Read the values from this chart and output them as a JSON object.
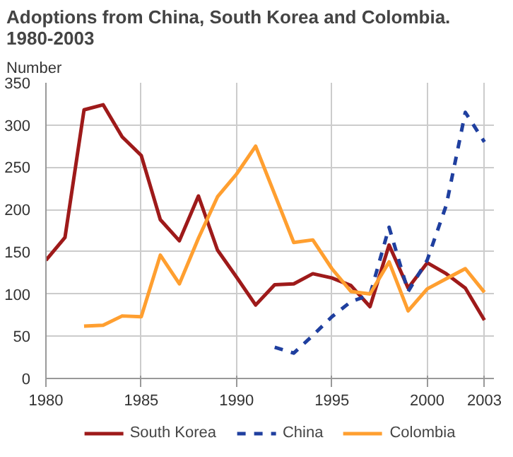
{
  "chart_data": {
    "type": "line",
    "title": "Adoptions from China, South Korea and Colombia.\n1980-2003",
    "ylabel": "Number",
    "x": [
      1980,
      1981,
      1982,
      1983,
      1984,
      1985,
      1986,
      1987,
      1988,
      1989,
      1990,
      1991,
      1992,
      1993,
      1994,
      1995,
      1996,
      1997,
      1998,
      1999,
      2000,
      2001,
      2002,
      2003
    ],
    "series": [
      {
        "name": "South Korea",
        "color": "#9e1a1a",
        "values": [
          140,
          167,
          318,
          324,
          286,
          264,
          188,
          163,
          216,
          152,
          120,
          87,
          111,
          112,
          124,
          119,
          110,
          85,
          158,
          107,
          137,
          124,
          107,
          69
        ]
      },
      {
        "name": "China",
        "color": "#1f3f9f",
        "line_style": "dashed",
        "values": [
          null,
          null,
          null,
          null,
          null,
          null,
          null,
          null,
          null,
          null,
          null,
          null,
          37,
          30,
          51,
          73,
          91,
          99,
          179,
          103,
          140,
          205,
          315,
          280
        ]
      },
      {
        "name": "Colombia",
        "color": "#ff9f30",
        "values": [
          null,
          null,
          62,
          63,
          74,
          73,
          146,
          112,
          166,
          215,
          242,
          275,
          218,
          161,
          164,
          130,
          103,
          100,
          138,
          80,
          106,
          118,
          130,
          102
        ]
      }
    ],
    "xlim": [
      1980,
      2003.5
    ],
    "ylim": [
      0,
      350
    ],
    "xticks": [
      1980,
      1985,
      1990,
      1995,
      2000,
      2003
    ],
    "yticks": [
      0,
      50,
      100,
      150,
      200,
      250,
      300,
      350
    ],
    "grid": true,
    "legend": "bottom",
    "line_style": "solid"
  }
}
